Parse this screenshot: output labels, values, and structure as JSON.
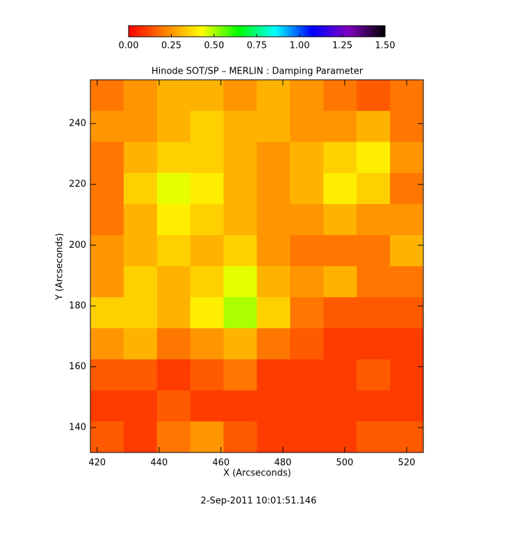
{
  "chart_data": {
    "type": "heatmap",
    "title": "Hinode SOT/SP – MERLIN : Damping Parameter",
    "xlabel": "X (Arcseconds)",
    "ylabel": "Y (Arcseconds)",
    "footer": "2-Sep-2011 10:01:51.146",
    "xlim": [
      417.8,
      525.4
    ],
    "xticks": [
      420,
      440,
      460,
      480,
      500,
      520
    ],
    "ylim": [
      131.8,
      254.4
    ],
    "yticks": [
      140,
      160,
      180,
      200,
      220,
      240
    ],
    "zlim": [
      0,
      1.5
    ],
    "zticks": [
      {
        "value": 0,
        "label": "0.00"
      },
      {
        "value": 0.25,
        "label": "0.25"
      },
      {
        "value": 0.5,
        "label": "0.50"
      },
      {
        "value": 0.75,
        "label": "0.75"
      },
      {
        "value": 1,
        "label": "1.00"
      },
      {
        "value": 1.25,
        "label": "1.25"
      },
      {
        "value": 1.5,
        "label": "1.50"
      }
    ],
    "colormap": [
      "#ff0000",
      "#ff8000",
      "#ffff00",
      "#00ff00",
      "#00ffff",
      "#0000ff",
      "#8000c0",
      "#000000"
    ],
    "z": [
      [
        0.2,
        0.25,
        0.3,
        0.3,
        0.25,
        0.3,
        0.25,
        0.2,
        0.15,
        0.2
      ],
      [
        0.25,
        0.25,
        0.3,
        0.35,
        0.3,
        0.3,
        0.25,
        0.25,
        0.3,
        0.2
      ],
      [
        0.2,
        0.3,
        0.35,
        0.35,
        0.3,
        0.25,
        0.3,
        0.35,
        0.4,
        0.25
      ],
      [
        0.2,
        0.35,
        0.45,
        0.4,
        0.3,
        0.25,
        0.3,
        0.4,
        0.35,
        0.2
      ],
      [
        0.2,
        0.3,
        0.4,
        0.35,
        0.3,
        0.25,
        0.25,
        0.3,
        0.25,
        0.25
      ],
      [
        0.25,
        0.3,
        0.35,
        0.3,
        0.35,
        0.25,
        0.2,
        0.2,
        0.2,
        0.3
      ],
      [
        0.25,
        0.35,
        0.3,
        0.35,
        0.45,
        0.3,
        0.25,
        0.3,
        0.2,
        0.2
      ],
      [
        0.35,
        0.35,
        0.3,
        0.4,
        0.5,
        0.35,
        0.2,
        0.15,
        0.15,
        0.15
      ],
      [
        0.25,
        0.3,
        0.2,
        0.25,
        0.3,
        0.2,
        0.15,
        0.1,
        0.1,
        0.1
      ],
      [
        0.15,
        0.15,
        0.1,
        0.15,
        0.2,
        0.1,
        0.1,
        0.1,
        0.15,
        0.1
      ],
      [
        0.1,
        0.1,
        0.15,
        0.1,
        0.1,
        0.1,
        0.1,
        0.1,
        0.1,
        0.1
      ],
      [
        0.15,
        0.1,
        0.2,
        0.25,
        0.15,
        0.1,
        0.1,
        0.1,
        0.15,
        0.15
      ]
    ]
  }
}
